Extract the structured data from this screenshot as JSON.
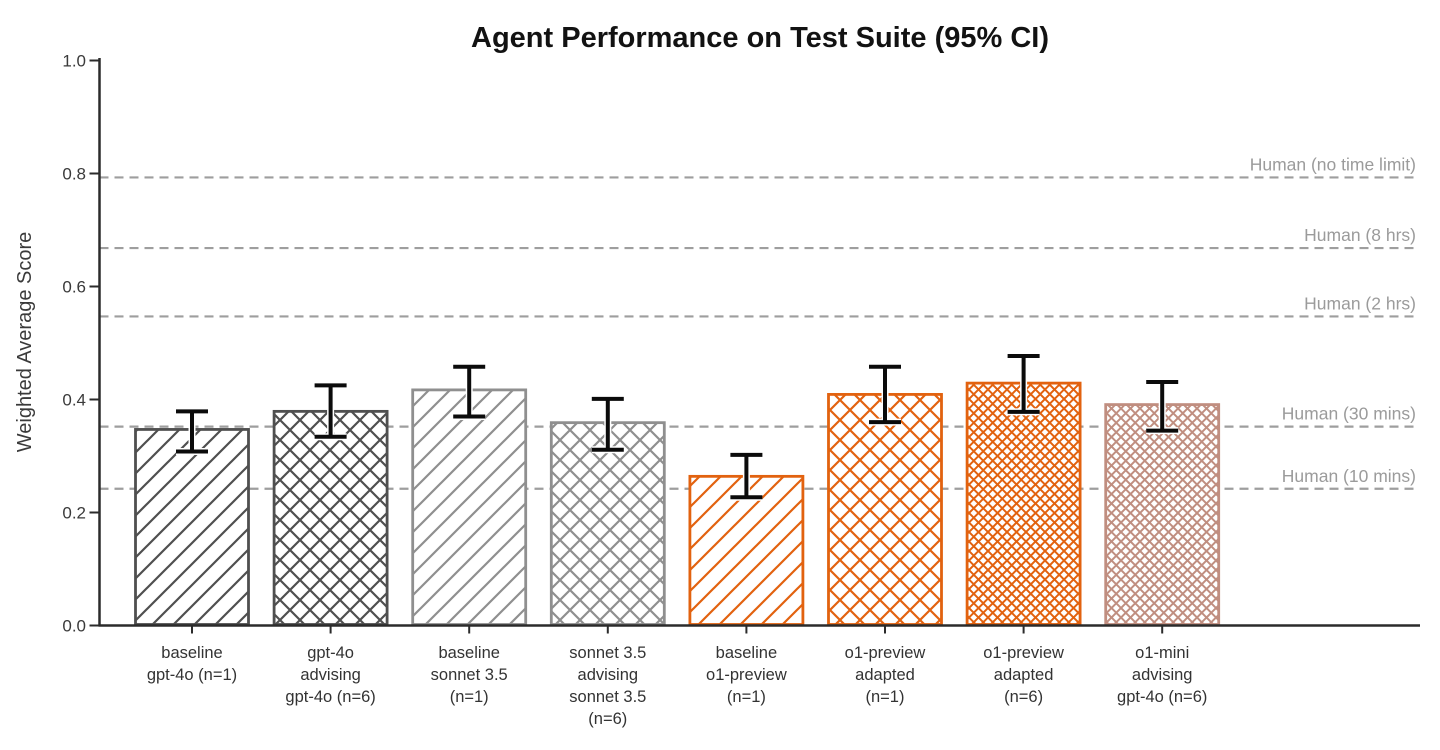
{
  "chart_data": {
    "type": "bar",
    "title": "Agent Performance on Test Suite (95% CI)",
    "ylabel": "Weighted Average Score",
    "ylim": [
      0.0,
      1.0
    ],
    "yticks": [
      0.0,
      0.2,
      0.4,
      0.6,
      0.8,
      1.0
    ],
    "grid": false,
    "legend": "none",
    "error_bar_type": "95% CI",
    "bars": [
      {
        "label_lines": [
          "baseline",
          "gpt-4o (n=1)"
        ],
        "value": 0.347,
        "ci_low": 0.308,
        "ci_high": 0.379,
        "color": "#4f4f4f",
        "hatch": "diag",
        "hatch_density": "normal"
      },
      {
        "label_lines": [
          "gpt-4o",
          "advising",
          "gpt-4o (n=6)"
        ],
        "value": 0.379,
        "ci_low": 0.334,
        "ci_high": 0.425,
        "color": "#4f4f4f",
        "hatch": "cross",
        "hatch_density": "normal"
      },
      {
        "label_lines": [
          "baseline",
          "sonnet 3.5",
          "(n=1)"
        ],
        "value": 0.417,
        "ci_low": 0.37,
        "ci_high": 0.458,
        "color": "#8f8f8f",
        "hatch": "diag",
        "hatch_density": "normal"
      },
      {
        "label_lines": [
          "sonnet 3.5",
          "advising",
          "sonnet 3.5",
          "(n=6)"
        ],
        "value": 0.359,
        "ci_low": 0.311,
        "ci_high": 0.401,
        "color": "#8f8f8f",
        "hatch": "cross",
        "hatch_density": "normal"
      },
      {
        "label_lines": [
          "baseline",
          "o1-preview",
          "(n=1)"
        ],
        "value": 0.264,
        "ci_low": 0.227,
        "ci_high": 0.302,
        "color": "#e2620f",
        "hatch": "diag",
        "hatch_density": "normal"
      },
      {
        "label_lines": [
          "o1-preview",
          "adapted",
          "(n=1)"
        ],
        "value": 0.409,
        "ci_low": 0.36,
        "ci_high": 0.458,
        "color": "#e2620f",
        "hatch": "cross",
        "hatch_density": "normal"
      },
      {
        "label_lines": [
          "o1-preview",
          "adapted",
          "(n=6)"
        ],
        "value": 0.429,
        "ci_low": 0.378,
        "ci_high": 0.477,
        "color": "#e2620f",
        "hatch": "cross",
        "hatch_density": "dense"
      },
      {
        "label_lines": [
          "o1-mini",
          "advising",
          "gpt-4o (n=6)"
        ],
        "value": 0.391,
        "ci_low": 0.345,
        "ci_high": 0.431,
        "color": "#c08e80",
        "hatch": "cross",
        "hatch_density": "dense"
      }
    ],
    "reference_lines": [
      {
        "label": "Human (no time limit)",
        "value": 0.793
      },
      {
        "label": "Human (8 hrs)",
        "value": 0.668
      },
      {
        "label": "Human (2 hrs)",
        "value": 0.547
      },
      {
        "label": "Human (30 mins)",
        "value": 0.352
      },
      {
        "label": "Human (10 mins)",
        "value": 0.242
      }
    ],
    "colors": {
      "background": "#ffffff",
      "axis": "#2b2b2b",
      "reference_line": "#9e9e9e",
      "error_bar": "#0b0b0b",
      "dark_gray_series": "#4f4f4f",
      "gray_series": "#8f8f8f",
      "orange_series": "#e2620f",
      "rosybrown_series": "#c08e80"
    }
  }
}
